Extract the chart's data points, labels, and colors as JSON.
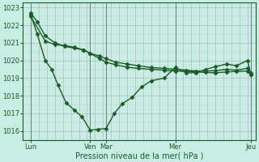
{
  "xlabel": "Pression niveau de la mer( hPa )",
  "bg_color": "#c8ede4",
  "line_color": "#1a5c28",
  "ylim": [
    1015.5,
    1023.3
  ],
  "yticks": [
    1016,
    1017,
    1018,
    1019,
    1020,
    1021,
    1022,
    1023
  ],
  "xlim": [
    0,
    14.5
  ],
  "day_lines": [
    0.5,
    4.2,
    5.2,
    9.5,
    14.2
  ],
  "xtick_positions": [
    0.5,
    4.2,
    5.2,
    9.5,
    14.2
  ],
  "xtick_labels": [
    "Lun",
    "Ven",
    "Mar",
    "Mer",
    "Jeu"
  ],
  "line1_x": [
    0.5,
    0.9,
    1.4,
    2.0,
    2.6,
    3.2,
    3.8,
    4.2,
    4.8,
    5.2,
    5.8,
    6.5,
    7.2,
    8.0,
    8.8,
    9.5,
    10.2,
    10.8,
    11.4,
    12.0,
    12.7,
    13.3,
    14.0,
    14.2
  ],
  "line1_y": [
    1022.7,
    1022.2,
    1021.4,
    1021.0,
    1020.8,
    1020.7,
    1020.6,
    1020.4,
    1020.25,
    1020.1,
    1019.9,
    1019.8,
    1019.7,
    1019.6,
    1019.55,
    1019.5,
    1019.45,
    1019.4,
    1019.4,
    1019.42,
    1019.5,
    1019.45,
    1019.55,
    1019.3
  ],
  "line2_x": [
    0.5,
    1.4,
    2.0,
    2.6,
    3.2,
    3.8,
    4.2,
    4.8,
    5.2,
    5.8,
    6.5,
    7.2,
    8.0,
    8.8,
    9.5,
    10.2,
    10.8,
    11.4,
    12.0,
    12.7,
    13.3,
    14.0,
    14.2
  ],
  "line2_y": [
    1022.5,
    1021.1,
    1020.9,
    1020.85,
    1020.75,
    1020.6,
    1020.4,
    1020.1,
    1019.9,
    1019.75,
    1019.62,
    1019.55,
    1019.5,
    1019.45,
    1019.4,
    1019.38,
    1019.35,
    1019.32,
    1019.3,
    1019.35,
    1019.38,
    1019.4,
    1019.2
  ],
  "line3_x": [
    0.5,
    0.9,
    1.4,
    1.8,
    2.2,
    2.7,
    3.2,
    3.7,
    4.2,
    4.7,
    5.2,
    5.7,
    6.2,
    6.8,
    7.4,
    8.0,
    8.8,
    9.5,
    10.2,
    10.8,
    11.4,
    12.0,
    12.7,
    13.3,
    14.0,
    14.2
  ],
  "line3_y": [
    1022.6,
    1021.5,
    1020.0,
    1019.5,
    1018.6,
    1017.6,
    1017.2,
    1016.8,
    1016.05,
    1016.1,
    1016.15,
    1017.0,
    1017.55,
    1017.9,
    1018.5,
    1018.85,
    1019.0,
    1019.6,
    1019.3,
    1019.3,
    1019.5,
    1019.65,
    1019.8,
    1019.7,
    1020.0,
    1019.2
  ],
  "marker": "D",
  "markersize": 2.5,
  "linewidth": 1.0,
  "grid_minor_color": "#b8b8c8",
  "grid_major_color": "#a8a8b8",
  "vline_color": "#707888"
}
